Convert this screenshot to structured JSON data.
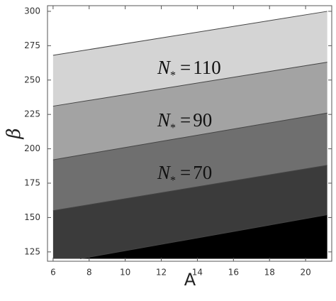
{
  "chart_data": {
    "type": "contour",
    "x_label": "A",
    "y_label": "β",
    "xlim": [
      5.69,
      21.45
    ],
    "ylim": [
      118.2,
      304.1
    ],
    "xticks": [
      6,
      8,
      10,
      12,
      14,
      16,
      18,
      20
    ],
    "yticks": [
      125,
      150,
      175,
      200,
      225,
      250,
      275,
      300
    ],
    "boundaries": [
      {
        "x": [
          6,
          21.2
        ],
        "y": [
          268,
          300
        ]
      },
      {
        "x": [
          6,
          21.2
        ],
        "y": [
          231,
          263
        ]
      },
      {
        "x": [
          6,
          21.2
        ],
        "y": [
          192,
          226
        ]
      },
      {
        "x": [
          6,
          21.2
        ],
        "y": [
          155,
          188
        ]
      },
      {
        "x": [
          7.5,
          21.2
        ],
        "y": [
          120,
          152
        ]
      }
    ],
    "fills": [
      "#d4d4d4",
      "#a3a3a3",
      "#6f6f6f",
      "#3b3b3b",
      "#000000"
    ],
    "annotations": [
      {
        "symbol": "N",
        "subscript": "*",
        "relation": "=",
        "value": 110
      },
      {
        "symbol": "N",
        "subscript": "*",
        "relation": "=",
        "value": 90
      },
      {
        "symbol": "N",
        "subscript": "*",
        "relation": "=",
        "value": 70
      }
    ]
  }
}
